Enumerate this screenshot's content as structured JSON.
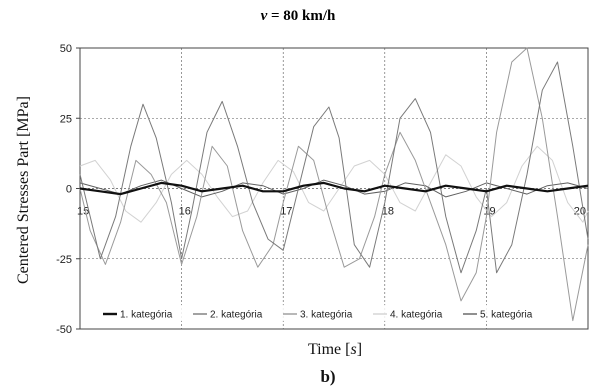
{
  "chart_data": {
    "type": "line",
    "title_var": "v",
    "title_rest": " = 80 km/h",
    "xlabel_main": "Time [",
    "xlabel_unit": "s",
    "xlabel_close": "]",
    "ylabel": "Centered Stresses Part [MPa]",
    "caption": "b)",
    "xlim": [
      15,
      20
    ],
    "ylim": [
      -50,
      50
    ],
    "xticks": [
      "15",
      "16",
      "17",
      "18",
      "19",
      "20"
    ],
    "yticks": [
      "50",
      "25",
      "0",
      "-25",
      "-50"
    ],
    "yticks_values": [
      50,
      25,
      0,
      -25,
      -50
    ],
    "xticks_values": [
      15,
      16,
      17,
      18,
      19,
      20
    ],
    "grid": true,
    "legend_position": "bottom",
    "series": [
      {
        "name": "1. kategória",
        "color": "#111111",
        "width": 2.2,
        "x": [
          15.0,
          15.2,
          15.4,
          15.6,
          15.8,
          16.0,
          16.2,
          16.4,
          16.6,
          16.8,
          17.0,
          17.2,
          17.4,
          17.6,
          17.8,
          18.0,
          18.2,
          18.4,
          18.6,
          18.8,
          19.0,
          19.2,
          19.4,
          19.6,
          19.8,
          20.0
        ],
        "y": [
          0,
          -1,
          -2,
          0,
          2,
          1,
          -1,
          0,
          1,
          -1,
          -1,
          1,
          2,
          0,
          -1,
          1,
          0,
          -1,
          1,
          0,
          -1,
          1,
          0,
          -1,
          0,
          1
        ]
      },
      {
        "name": "2. kategória",
        "color": "#7a7a7a",
        "width": 1.0,
        "x": [
          15.0,
          15.1,
          15.2,
          15.35,
          15.5,
          15.62,
          15.75,
          15.9,
          16.0,
          16.1,
          16.25,
          16.4,
          16.55,
          16.7,
          16.85,
          17.0,
          17.15,
          17.3,
          17.45,
          17.55,
          17.7,
          17.85,
          18.0,
          18.15,
          18.3,
          18.45,
          18.6,
          18.75,
          18.9,
          19.0,
          19.1,
          19.25,
          19.4,
          19.55,
          19.7,
          19.85,
          20.0
        ],
        "y": [
          5,
          -10,
          -25,
          -10,
          15,
          30,
          18,
          -5,
          -25,
          -8,
          20,
          31,
          15,
          -5,
          -18,
          -22,
          0,
          22,
          29,
          18,
          -20,
          -28,
          -5,
          25,
          32,
          20,
          -10,
          -30,
          -15,
          0,
          -30,
          -20,
          5,
          35,
          45,
          15,
          -18
        ]
      },
      {
        "name": "3. kategória",
        "color": "#9a9a9a",
        "width": 1.0,
        "x": [
          15.0,
          15.1,
          15.25,
          15.4,
          15.55,
          15.7,
          15.85,
          16.0,
          16.15,
          16.3,
          16.45,
          16.6,
          16.75,
          16.9,
          17.0,
          17.15,
          17.3,
          17.45,
          17.6,
          17.75,
          17.9,
          18.0,
          18.15,
          18.3,
          18.45,
          18.6,
          18.75,
          18.9,
          19.0,
          19.1,
          19.25,
          19.4,
          19.55,
          19.7,
          19.85,
          20.0
        ],
        "y": [
          0,
          -15,
          -27,
          -12,
          10,
          5,
          -5,
          -27,
          -10,
          15,
          8,
          -15,
          -28,
          -20,
          -5,
          15,
          10,
          -10,
          -28,
          -25,
          -10,
          5,
          20,
          10,
          -5,
          -20,
          -40,
          -30,
          -10,
          20,
          45,
          50,
          25,
          -10,
          -47,
          -20
        ]
      },
      {
        "name": "4. kategória",
        "color": "#d2d2d2",
        "width": 1.0,
        "x": [
          15.0,
          15.15,
          15.3,
          15.45,
          15.6,
          15.75,
          15.9,
          16.05,
          16.2,
          16.35,
          16.5,
          16.65,
          16.8,
          16.95,
          17.1,
          17.25,
          17.4,
          17.55,
          17.7,
          17.85,
          18.0,
          18.15,
          18.3,
          18.45,
          18.6,
          18.75,
          18.9,
          19.05,
          19.2,
          19.35,
          19.5,
          19.65,
          19.8,
          19.95,
          20.0
        ],
        "y": [
          8,
          10,
          3,
          -8,
          -12,
          -5,
          5,
          10,
          5,
          -3,
          -10,
          -8,
          2,
          10,
          6,
          -5,
          -8,
          0,
          8,
          10,
          5,
          -5,
          -8,
          2,
          12,
          8,
          -3,
          -10,
          -5,
          8,
          15,
          10,
          -5,
          -12,
          -8
        ]
      },
      {
        "name": "5. kategória",
        "color": "#606060",
        "width": 1.0,
        "x": [
          15.0,
          15.2,
          15.4,
          15.6,
          15.8,
          16.0,
          16.2,
          16.4,
          16.6,
          16.8,
          17.0,
          17.2,
          17.4,
          17.6,
          17.8,
          18.0,
          18.2,
          18.4,
          18.6,
          18.8,
          19.0,
          19.2,
          19.4,
          19.6,
          19.8,
          20.0
        ],
        "y": [
          2,
          0,
          -2,
          1,
          3,
          0,
          -3,
          -1,
          2,
          1,
          -2,
          0,
          3,
          1,
          -2,
          -1,
          2,
          1,
          -3,
          -1,
          2,
          0,
          -2,
          1,
          2,
          0
        ]
      }
    ]
  }
}
